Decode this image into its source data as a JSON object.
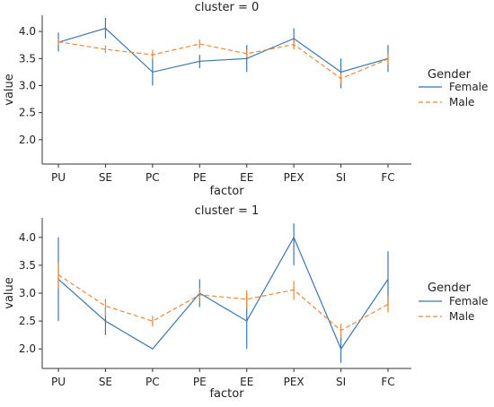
{
  "chart_data": [
    {
      "type": "line",
      "title": "cluster = 0",
      "xlabel": "factor",
      "ylabel": "value",
      "categories": [
        "PU",
        "SE",
        "PC",
        "PE",
        "EE",
        "PEX",
        "SI",
        "FC"
      ],
      "yticks": [
        "2.0",
        "2.5",
        "3.0",
        "3.5",
        "4.0"
      ],
      "ylim": [
        1.55,
        4.3
      ],
      "grid": false,
      "legend": {
        "title": "Gender",
        "position": "right",
        "entries": [
          "Female",
          "Male"
        ]
      },
      "series": [
        {
          "name": "Female",
          "color": "#3b75af",
          "style": "solid",
          "values": [
            3.8,
            4.06,
            3.25,
            3.45,
            3.5,
            3.87,
            3.25,
            3.5
          ],
          "err_low": [
            3.63,
            3.87,
            3.0,
            3.32,
            3.25,
            3.68,
            2.95,
            3.25
          ],
          "err_high": [
            3.98,
            4.25,
            3.5,
            3.57,
            3.75,
            4.06,
            3.5,
            3.75
          ]
        },
        {
          "name": "Male",
          "color": "#ef8636",
          "style": "dashed",
          "values": [
            3.81,
            3.67,
            3.57,
            3.77,
            3.59,
            3.76,
            3.13,
            3.49
          ],
          "err_low": [
            3.75,
            3.6,
            3.48,
            3.69,
            3.52,
            3.67,
            3.04,
            3.38
          ],
          "err_high": [
            3.87,
            3.74,
            3.66,
            3.85,
            3.67,
            3.85,
            3.22,
            3.6
          ]
        }
      ]
    },
    {
      "type": "line",
      "title": "cluster = 1",
      "xlabel": "factor",
      "ylabel": "value",
      "categories": [
        "PU",
        "SE",
        "PC",
        "PE",
        "EE",
        "PEX",
        "SI",
        "FC"
      ],
      "yticks": [
        "2.0",
        "2.5",
        "3.0",
        "3.5",
        "4.0"
      ],
      "ylim": [
        1.65,
        4.35
      ],
      "grid": false,
      "legend": {
        "title": "Gender",
        "position": "right",
        "entries": [
          "Female",
          "Male"
        ]
      },
      "series": [
        {
          "name": "Female",
          "color": "#3b75af",
          "style": "solid",
          "values": [
            3.25,
            2.5,
            2.0,
            3.0,
            2.5,
            4.0,
            2.0,
            3.25
          ],
          "err_low": [
            2.5,
            2.25,
            2.0,
            2.75,
            2.0,
            3.5,
            1.75,
            2.75
          ],
          "err_high": [
            4.0,
            2.75,
            2.0,
            3.25,
            3.0,
            4.25,
            2.25,
            3.75
          ]
        },
        {
          "name": "Male",
          "color": "#ef8636",
          "style": "dashed",
          "values": [
            3.33,
            2.77,
            2.5,
            2.97,
            2.89,
            3.06,
            2.33,
            2.8
          ],
          "err_low": [
            3.08,
            2.6,
            2.4,
            2.85,
            2.72,
            2.88,
            2.2,
            2.65
          ],
          "err_high": [
            3.55,
            2.9,
            2.6,
            3.1,
            3.05,
            3.22,
            2.45,
            2.95
          ]
        }
      ]
    }
  ]
}
